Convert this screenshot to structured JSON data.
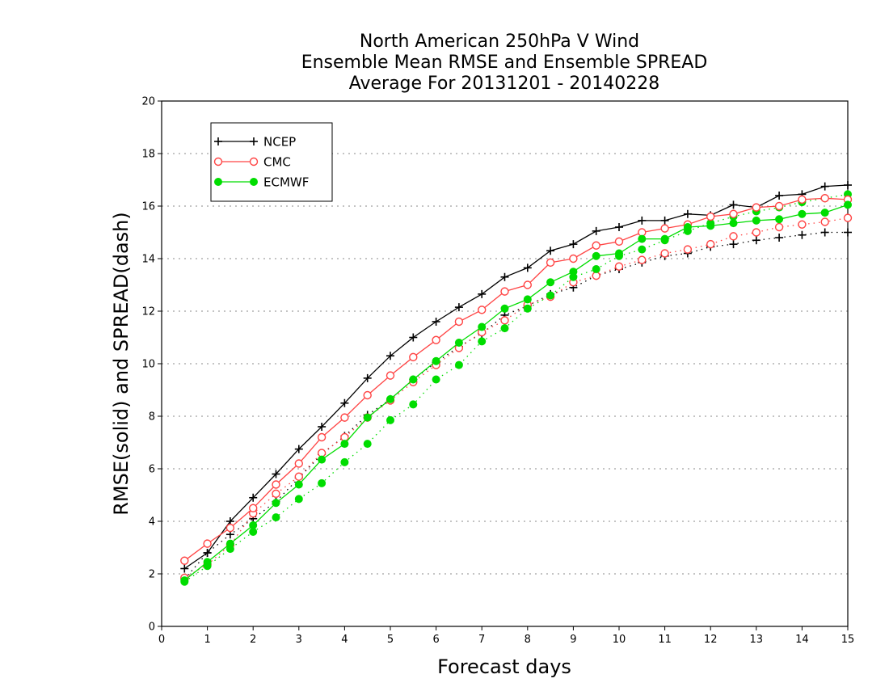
{
  "chart_data": {
    "type": "line",
    "title": [
      "North American 250hPa V Wind",
      "Ensemble Mean RMSE and Ensemble SPREAD",
      "Average For 20131201 - 20140228"
    ],
    "xlabel": "Forecast days",
    "ylabel": "RMSE(solid) and SPREAD(dash)",
    "xlim": [
      0,
      15
    ],
    "ylim": [
      0,
      20
    ],
    "xticks": [
      0,
      1,
      2,
      3,
      4,
      5,
      6,
      7,
      8,
      9,
      10,
      11,
      12,
      13,
      14,
      15
    ],
    "yticks": [
      0,
      2,
      4,
      6,
      8,
      10,
      12,
      14,
      16,
      18,
      20
    ],
    "grid": "horizontal dotted",
    "legend_position": "top-left",
    "x": [
      0.5,
      1.0,
      1.5,
      2.0,
      2.5,
      3.0,
      3.5,
      4.0,
      4.5,
      5.0,
      5.5,
      6.0,
      6.5,
      7.0,
      7.5,
      8.0,
      8.5,
      9.0,
      9.5,
      10.0,
      10.5,
      11.0,
      11.5,
      12.0,
      12.5,
      13.0,
      13.5,
      14.0,
      14.5,
      15.0
    ],
    "series": [
      {
        "name": "NCEP",
        "style": "solid",
        "color": "#000000",
        "marker": "plus",
        "values": [
          2.2,
          2.8,
          4.0,
          4.9,
          5.8,
          6.75,
          7.6,
          8.5,
          9.45,
          10.3,
          11.0,
          11.6,
          12.15,
          12.65,
          13.3,
          13.65,
          14.3,
          14.55,
          15.05,
          15.2,
          15.45,
          15.45,
          15.7,
          15.65,
          16.05,
          15.95,
          16.4,
          16.45,
          16.75,
          16.8
        ]
      },
      {
        "name": "CMC",
        "style": "solid",
        "color": "#ff4444",
        "marker": "open-circle",
        "values": [
          2.5,
          3.15,
          3.75,
          4.5,
          5.4,
          6.2,
          7.2,
          7.95,
          8.8,
          9.55,
          10.25,
          10.9,
          11.6,
          12.05,
          12.75,
          13.0,
          13.85,
          14.0,
          14.5,
          14.65,
          15.0,
          15.15,
          15.3,
          15.6,
          15.7,
          15.95,
          16.0,
          16.25,
          16.3,
          16.25
        ]
      },
      {
        "name": "ECMWF",
        "style": "solid",
        "color": "#00dd00",
        "marker": "filled-circle",
        "values": [
          1.75,
          2.45,
          3.15,
          3.85,
          4.7,
          5.4,
          6.35,
          6.95,
          7.95,
          8.65,
          9.4,
          10.1,
          10.8,
          11.4,
          12.1,
          12.45,
          13.1,
          13.5,
          14.1,
          14.2,
          14.75,
          14.75,
          15.2,
          15.25,
          15.35,
          15.45,
          15.5,
          15.7,
          15.75,
          16.05
        ]
      },
      {
        "name": "NCEP",
        "style": "dotted",
        "color": "#000000",
        "marker": "plus",
        "values": [
          1.8,
          2.8,
          3.5,
          4.1,
          4.75,
          5.65,
          6.55,
          7.25,
          8.05,
          8.65,
          9.4,
          10.05,
          10.65,
          11.15,
          11.85,
          12.2,
          12.65,
          12.9,
          13.35,
          13.6,
          13.85,
          14.1,
          14.2,
          14.45,
          14.55,
          14.7,
          14.8,
          14.9,
          15.0,
          15.0
        ]
      },
      {
        "name": "CMC",
        "style": "dotted",
        "color": "#ff4444",
        "marker": "open-circle",
        "values": [
          1.85,
          2.35,
          3.1,
          4.3,
          5.05,
          5.7,
          6.6,
          7.2,
          7.95,
          8.6,
          9.3,
          9.95,
          10.6,
          11.2,
          11.65,
          12.25,
          12.55,
          13.1,
          13.35,
          13.7,
          13.95,
          14.2,
          14.35,
          14.55,
          14.85,
          15.0,
          15.2,
          15.3,
          15.4,
          15.55
        ]
      },
      {
        "name": "ECMWF",
        "style": "dotted",
        "color": "#00dd00",
        "marker": "filled-circle",
        "values": [
          1.7,
          2.3,
          2.95,
          3.6,
          4.15,
          4.85,
          5.45,
          6.25,
          6.95,
          7.85,
          8.45,
          9.4,
          9.95,
          10.85,
          11.35,
          12.1,
          12.6,
          13.3,
          13.6,
          14.1,
          14.35,
          14.7,
          15.05,
          15.35,
          15.6,
          15.8,
          15.95,
          16.15,
          16.3,
          16.45
        ]
      }
    ]
  }
}
